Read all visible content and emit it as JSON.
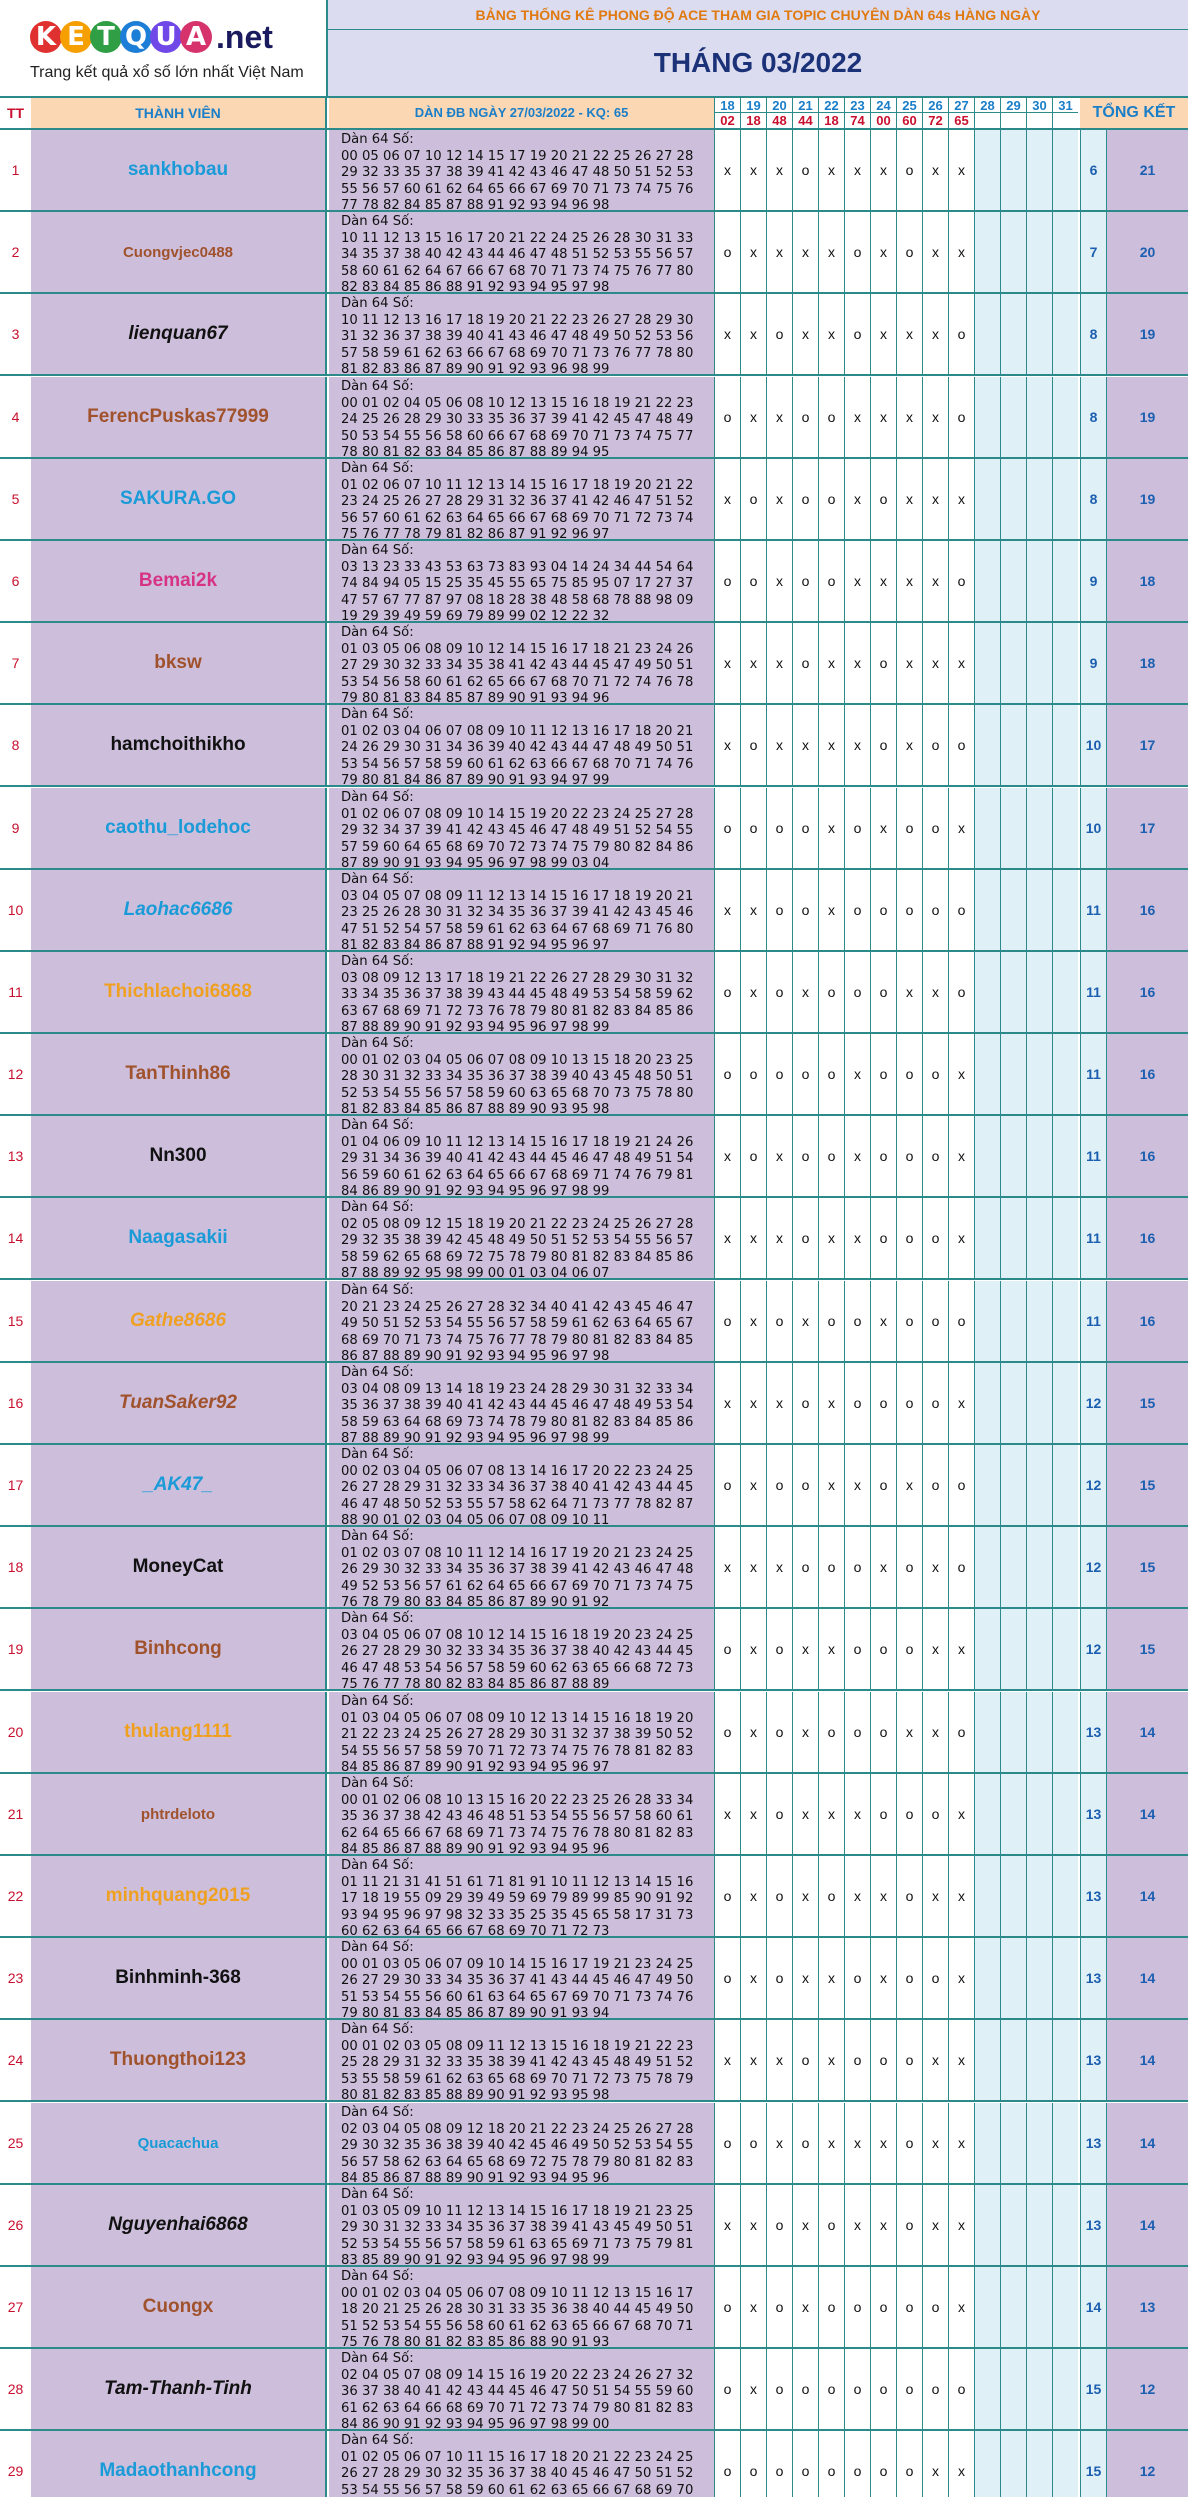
{
  "logo": {
    "letters": [
      "K",
      "E",
      "T",
      "Q",
      "U",
      "A"
    ],
    "suffix": ".net",
    "tagline": "Trang kết quả xổ số lớn nhất Việt Nam",
    "ball_colors": [
      "#e03131",
      "#f59f00",
      "#2f9e44",
      "#1c7ed6",
      "#7048e8",
      "#d6336c"
    ]
  },
  "banner": "BẢNG THỐNG KÊ PHONG ĐỘ ACE THAM GIA TOPIC CHUYÊN DÀN 64s HÀNG NGÀY",
  "month": "THÁNG 03/2022",
  "columns": {
    "tt": "TT",
    "member": "THÀNH VIÊN",
    "dan": "DÀN ĐB NGÀY 27/03/2022 - KQ: 65",
    "total": "TỔNG KẾT"
  },
  "days": [
    {
      "day": "18",
      "kq": "02"
    },
    {
      "day": "19",
      "kq": "18"
    },
    {
      "day": "20",
      "kq": "48"
    },
    {
      "day": "21",
      "kq": "44"
    },
    {
      "day": "22",
      "kq": "18"
    },
    {
      "day": "23",
      "kq": "74"
    },
    {
      "day": "24",
      "kq": "00"
    },
    {
      "day": "25",
      "kq": "60"
    },
    {
      "day": "26",
      "kq": "72"
    },
    {
      "day": "27",
      "kq": "65"
    },
    {
      "day": "28",
      "kq": ""
    },
    {
      "day": "29",
      "kq": ""
    },
    {
      "day": "30",
      "kq": ""
    },
    {
      "day": "31",
      "kq": ""
    }
  ],
  "rows": [
    {
      "tt": "1",
      "name": "sankhobau",
      "color": "#1a9bd7",
      "italic": false,
      "label": "Dàn 64 Số:",
      "nums": "00 05 06 07 10 12 14 15 17 19 20 21 22 25 26 27 28 29 32 33 35 37 38 39 41 42 43 46 47 48 50 51 52 53 55 56 57 60 61 62 64 65 66 67 69 70 71 73 74 75 76 77 78 82 84 85 87 88 91 92 93 94 96 98",
      "marks": [
        "x",
        "x",
        "x",
        "o",
        "x",
        "x",
        "x",
        "o",
        "x",
        "x"
      ],
      "count": "6",
      "score": "21"
    },
    {
      "tt": "2",
      "name": "Cuongvjec0488",
      "color": "#a0522d",
      "italic": false,
      "small": true,
      "label": "Dàn 64 Số:",
      "nums": "10 11 12 13 15 16 17 20 21 22 24 25 26 28 30 31 33 34 35 37 38 40 42 43 44 46 47 48 51 52 53 55 56 57 58 60 61 62 64 67 66 67 68 70 71 73 74 75 76 77 80 82 83 84 85 86 88 91 92 93 94 95 97 98",
      "marks": [
        "o",
        "x",
        "x",
        "x",
        "x",
        "o",
        "x",
        "o",
        "x",
        "x"
      ],
      "count": "7",
      "score": "20"
    },
    {
      "tt": "3",
      "name": "lienquan67",
      "color": "#111111",
      "italic": true,
      "label": "Dàn 64 Số:",
      "nums": "10 11 12 13 16 17 18 19 20 21 22 23 26 27 28 29 30 31 32 36 37 38 39 40 41 43 46 47 48 49 50 52 53 56 57 58 59 61 62 63 66 67 68 69 70 71 73 76 77 78 80 81 82 83 86 87 89 90 91 92 93 96 98 99",
      "marks": [
        "x",
        "x",
        "o",
        "x",
        "x",
        "o",
        "x",
        "x",
        "x",
        "o"
      ],
      "count": "8",
      "score": "19"
    },
    {
      "tt": "4",
      "name": "FerencPuskas77999",
      "color": "#a0522d",
      "italic": false,
      "label": "Dàn 64 Số:",
      "nums": "00 01 02 04 05 06 08 10 12 13 15 16 18 19 21 22 23 24 25 26 28 29 30 33 35 36 37 39 41 42 45 47 48 49 50 53 54 55 56 58 60 66 67 68 69 70 71 73 74 75 77 78 80 81 82 83 84 85 86 87 88 89 94 95",
      "marks": [
        "o",
        "x",
        "x",
        "o",
        "o",
        "x",
        "x",
        "x",
        "x",
        "o"
      ],
      "count": "8",
      "score": "19"
    },
    {
      "tt": "5",
      "name": "SAKURA.GO",
      "color": "#1a9bd7",
      "italic": false,
      "label": "Dàn 64 Số:",
      "nums": "01 02 06 07 10 11 12 13 14 15 16 17 18 19 20 21 22 23 24 25 26 27 28 29 31 32 36 37 41 42 46 47 51 52 56 57 60 61 62 63 64 65 66 67 68 69 70 71 72 73 74 75 76 77 78 79 81 82 86 87 91 92 96 97",
      "marks": [
        "x",
        "o",
        "x",
        "o",
        "o",
        "x",
        "o",
        "x",
        "x",
        "x"
      ],
      "count": "8",
      "score": "19"
    },
    {
      "tt": "6",
      "name": "Bemai2k",
      "color": "#d63384",
      "italic": false,
      "label": "Dàn 64 Số:",
      "nums": "03 13 23 33 43 53 63 73 83 93 04 14 24 34 44 54 64 74 84 94 05 15 25 35 45 55 65 75 85 95 07 17 27 37 47 57 67 77 87 97 08 18 28 38 48 58 68 78 88 98 09 19 29 39 49 59 69 79 89 99 02 12 22 32",
      "marks": [
        "o",
        "o",
        "x",
        "o",
        "o",
        "x",
        "x",
        "x",
        "x",
        "o"
      ],
      "count": "9",
      "score": "18"
    },
    {
      "tt": "7",
      "name": "bksw",
      "color": "#a0522d",
      "italic": false,
      "label": "Dàn 64 Số:",
      "nums": "01 03 05 06 08 09 10 12 14 15 16 17 18 21 23 24 26 27 29 30 32 33 34 35 38 41 42 43 44 45 47 49 50 51 53 54 56 58 60 61 62 65 66 67 68 70 71 72 74 76 78 79 80 81 83 84 85 87 89 90 91 93 94 96",
      "marks": [
        "x",
        "x",
        "x",
        "o",
        "x",
        "x",
        "o",
        "x",
        "x",
        "x"
      ],
      "count": "9",
      "score": "18"
    },
    {
      "tt": "8",
      "name": "hamchoithikho",
      "color": "#111111",
      "italic": false,
      "label": "Dàn 64 Số:",
      "nums": "01 02 03 04 06 07 08 09 10 11 12 13 16 17 18 20 21 24 26 29 30 31 34 36 39 40 42 43 44 47 48 49 50 51 53 54 56 57 58 59 60 61 62 63 66 67 68 70 71 74 76 79 80 81 84 86 87 89 90 91 93 94 97 99",
      "marks": [
        "x",
        "o",
        "x",
        "x",
        "x",
        "x",
        "o",
        "x",
        "o",
        "o"
      ],
      "count": "10",
      "score": "17"
    },
    {
      "tt": "9",
      "name": "caothu_lodehoc",
      "color": "#1a9bd7",
      "italic": false,
      "label": "Dàn 64 Số:",
      "nums": "01 02 06 07 08 09 10 14 15 19 20 22 23 24 25 27 28 29 32 34 37 39 41 42 43 45 46 47 48 49 51 52 54 55 57 59 60 64 65 68 69 70 72 73 74 75 79 80 82 84 86 87 89 90 91 93 94 95 96 97 98 99 03 04",
      "marks": [
        "o",
        "o",
        "o",
        "o",
        "x",
        "o",
        "x",
        "o",
        "o",
        "x"
      ],
      "count": "10",
      "score": "17"
    },
    {
      "tt": "10",
      "name": "Laohac6686",
      "color": "#1a9bd7",
      "italic": true,
      "label": "Dàn 64 Số:",
      "nums": "03 04 05 07 08 09 11 12 13 14 15 16 17 18 19 20 21 23 25 26 28 30 31 32 34 35 36 37 39 41 42 43 45 46 47 51 52 54 57 58 59 61 62 63 64 67 68 69 71 76 80 81 82 83 84 86 87 88 91 92 94 95 96 97",
      "marks": [
        "x",
        "x",
        "o",
        "o",
        "x",
        "o",
        "o",
        "o",
        "o",
        "o"
      ],
      "count": "11",
      "score": "16"
    },
    {
      "tt": "11",
      "name": "Thichlachoi6868",
      "color": "#f0a020",
      "italic": false,
      "label": "Dàn 64 Số:",
      "nums": "03 08 09 12 13 17 18 19 21 22 26 27 28 29 30 31 32 33 34 35 36 37 38 39 43 44 45 48 49 53 54 58 59 62 63 67 68 69 71 72 73 76 78 79 80 81 82 83 84 85 86 87 88 89 90 91 92 93 94 95 96 97 98 99",
      "marks": [
        "o",
        "x",
        "o",
        "x",
        "o",
        "o",
        "o",
        "x",
        "x",
        "o"
      ],
      "count": "11",
      "score": "16"
    },
    {
      "tt": "12",
      "name": "TanThinh86",
      "color": "#a0522d",
      "italic": false,
      "label": "Dàn 64 Số:",
      "nums": "00 01 02 03 04 05 06 07 08 09 10 13 15 18 20 23 25 28 30 31 32 33 34 35 36 37 38 39 40 43 45 48 50 51 52 53 54 55 56 57 58 59 60 63 65 68 70 73 75 78 80 81 82 83 84 85 86 87 88 89 90 93 95 98",
      "marks": [
        "o",
        "o",
        "o",
        "o",
        "o",
        "x",
        "o",
        "o",
        "o",
        "x"
      ],
      "count": "11",
      "score": "16"
    },
    {
      "tt": "13",
      "name": "Nn300",
      "color": "#111111",
      "italic": false,
      "label": "Dàn 64 Số:",
      "nums": "01 04 06 09 10 11 12 13 14 15 16 17 18 19 21 24 26 29 31 34 36 39 40 41 42 43 44 45 46 47 48 49 51 54 56 59 60 61 62 63 64 65 66 67 68 69 71 74 76 79 81 84 86 89 90 91 92 93 94 95 96 97 98 99",
      "marks": [
        "x",
        "o",
        "x",
        "o",
        "o",
        "x",
        "o",
        "o",
        "o",
        "x"
      ],
      "count": "11",
      "score": "16"
    },
    {
      "tt": "14",
      "name": "Naagasakii",
      "color": "#1a9bd7",
      "italic": false,
      "label": "Dàn 64 Số:",
      "nums": "02 05 08 09 12 15 18 19 20 21 22 23 24 25 26 27 28 29 32 35 38 39 42 45 48 49 50 51 52 53 54 55 56 57 58 59 62 65 68 69 72 75 78 79 80 81 82 83 84 85 86 87 88 89 92 95 98 99 00 01 03 04 06 07",
      "marks": [
        "x",
        "x",
        "x",
        "o",
        "x",
        "x",
        "o",
        "o",
        "o",
        "x"
      ],
      "count": "11",
      "score": "16"
    },
    {
      "tt": "15",
      "name": "Gathe8686",
      "color": "#f0a020",
      "italic": true,
      "label": "Dàn 64 Số:",
      "nums": "20 21 23 24 25 26 27 28 32 34 40 41 42 43 45 46 47 49 50 51 52 53 54 55 56 57 58 59 61 62 63 64 65 67 68 69 70 71 73 74 75 76 77 78 79 80 81 82 83 84 85 86 87 88 89 90 91 92 93 94 95 96 97 98",
      "marks": [
        "o",
        "x",
        "o",
        "x",
        "o",
        "o",
        "x",
        "o",
        "o",
        "o"
      ],
      "count": "11",
      "score": "16"
    },
    {
      "tt": "16",
      "name": "TuanSaker92",
      "color": "#a0522d",
      "italic": true,
      "label": "Dàn 64 Số:",
      "nums": "03 04 08 09 13 14 18 19 23 24 28 29 30 31 32 33 34 35 36 37 38 39 40 41 42 43 44 45 46 47 48 49 53 54 58 59 63 64 68 69 73 74 78 79 80 81 82 83 84 85 86 87 88 89 90 91 92 93 94 95 96 97 98 99",
      "marks": [
        "x",
        "x",
        "x",
        "o",
        "x",
        "o",
        "o",
        "o",
        "o",
        "x"
      ],
      "count": "12",
      "score": "15"
    },
    {
      "tt": "17",
      "name": "_AK47_",
      "color": "#1a9bd7",
      "italic": true,
      "label": "Dàn 64 Số:",
      "nums": "00 02 03 04 05 06 07 08 13 14 16 17 20 22 23 24 25 26 27 28 29 31 32 33 34 36 37 38 40 41 42 43 44 45 46 47 48 50 52 53 55 57 58 62 64 71 73 77 78 82 87 88 90 01 02 03 04 05 06 07 08 09 10 11",
      "marks": [
        "o",
        "x",
        "o",
        "o",
        "x",
        "x",
        "o",
        "x",
        "o",
        "o"
      ],
      "count": "12",
      "score": "15"
    },
    {
      "tt": "18",
      "name": "MoneyCat",
      "color": "#111111",
      "italic": false,
      "label": "Dàn 64 Số:",
      "nums": "01 02 03 07 08 10 11 12 14 16 17 19 20 21 23 24 25 26 29 30 32 33 34 35 36 37 38 39 41 42 43 46 47 48 49 52 53 56 57 61 62 64 65 66 67 69 70 71 73 74 75 76 78 79 80 83 84 85 86 87 89 90 91 92",
      "marks": [
        "x",
        "x",
        "x",
        "o",
        "o",
        "o",
        "x",
        "o",
        "x",
        "o"
      ],
      "count": "12",
      "score": "15"
    },
    {
      "tt": "19",
      "name": "Binhcong",
      "color": "#a0522d",
      "italic": false,
      "label": "Dàn 64 Số:",
      "nums": "03 04 05 06 07 08 10 12 14 15 16 18 19 20 23 24 25 26 27 28 29 30 32 33 34 35 36 37 38 40 42 43 44 45 46 47 48 53 54 56 57 58 59 60 62 63 65 66 68 72 73 75 76 77 78 80 82 83 84 85 86 87 88 89",
      "marks": [
        "o",
        "x",
        "o",
        "x",
        "x",
        "o",
        "o",
        "o",
        "x",
        "x"
      ],
      "count": "12",
      "score": "15"
    },
    {
      "tt": "20",
      "name": "thulang1111",
      "color": "#f0a020",
      "italic": false,
      "label": "Dàn 64 Số:",
      "nums": "01 03 04 05 06 07 08 09 10 12 13 14 15 16 18 19 20 21 22 23 24 25 26 27 28 29 30 31 32 37 38 39 50 52 54 55 56 57 58 59 70 71 72 73 74 75 76 78 81 82 83 84 85 86 87 89 90 91 92 93 94 95 96 97",
      "marks": [
        "o",
        "x",
        "o",
        "x",
        "o",
        "o",
        "o",
        "x",
        "x",
        "o"
      ],
      "count": "13",
      "score": "14"
    },
    {
      "tt": "21",
      "name": "phtrdeloto",
      "color": "#a0522d",
      "italic": false,
      "small": true,
      "label": "Dàn 64 Số:",
      "nums": "00 01 02 06 08 10 13 15 16 20 22 23 25 26 28 33 34 35 36 37 38 42 43 46 48 51 53 54 55 56 57 58 60 61 62 64 65 66 67 68 69 71 73 74 75 76 78 80 81 82 83 84 85 86 87 88 89 90 91 92 93 94 95 96",
      "marks": [
        "x",
        "x",
        "o",
        "x",
        "x",
        "x",
        "o",
        "o",
        "o",
        "x"
      ],
      "count": "13",
      "score": "14"
    },
    {
      "tt": "22",
      "name": "minhquang2015",
      "color": "#f0a020",
      "italic": false,
      "label": "Dàn 64 Số:",
      "nums": "01 11 21 31 41 51 61 71 81 91 10 11 12 13 14 15 16 17 18 19 55 09 29 39 49 59 69 79 89 99 85 90 91 92 93 94 95 96 97 98 32 33 35 25 35 45 65 58 17 31 73 60 62 63 64 65 66 67 68 69 70 71 72 73",
      "marks": [
        "o",
        "x",
        "o",
        "x",
        "o",
        "x",
        "x",
        "o",
        "x",
        "x"
      ],
      "count": "13",
      "score": "14"
    },
    {
      "tt": "23",
      "name": "Binhminh-368",
      "color": "#111111",
      "italic": false,
      "label": "Dàn 64 Số:",
      "nums": "00 01 03 05 06 07 09 10 14 15 16 17 19 21 23 24 25 26 27 29 30 33 34 35 36 37 41 43 44 45 46 47 49 50 51 53 54 55 56 60 61 63 64 65 67 69 70 71 73 74 76 79 80 81 83 84 85 86 87 89 90 91 93 94",
      "marks": [
        "o",
        "x",
        "o",
        "x",
        "x",
        "o",
        "x",
        "o",
        "o",
        "x"
      ],
      "count": "13",
      "score": "14"
    },
    {
      "tt": "24",
      "name": "Thuongthoi123",
      "color": "#a0522d",
      "italic": false,
      "label": "Dàn 64 Số:",
      "nums": "00 01 02 03 05 08 09 11 12 13 15 16 18 19 21 22 23 25 28 29 31 32 33 35 38 39 41 42 43 45 48 49 51 52 53 55 58 59 61 62 63 65 68 69 70 71 72 73 75 78 79 80 81 82 83 85 88 89 90 91 92 93 95 98",
      "marks": [
        "x",
        "x",
        "x",
        "o",
        "x",
        "o",
        "o",
        "o",
        "x",
        "x"
      ],
      "count": "13",
      "score": "14"
    },
    {
      "tt": "25",
      "name": "Quacachua",
      "color": "#1a9bd7",
      "italic": false,
      "small": true,
      "label": "Dàn 64 Số:",
      "nums": "02 03 04 05 08 09 12 18 20 21 22 23 24 25 26 27 28 29 30 32 35 36 38 39 40 42 45 46 49 50 52 53 54 55 56 57 58 62 63 64 65 68 69 72 75 78 79 80 81 82 83 84 85 86 87 88 89 90 91 92 93 94 95 96",
      "marks": [
        "o",
        "o",
        "x",
        "o",
        "x",
        "x",
        "x",
        "o",
        "x",
        "x"
      ],
      "count": "13",
      "score": "14"
    },
    {
      "tt": "26",
      "name": "Nguyenhai6868",
      "color": "#111111",
      "italic": true,
      "label": "Dàn 64 Số:",
      "nums": "01 03 05 09 10 11 12 13 14 15 16 17 18 19 21 23 25 29 30 31 32 33 34 35 36 37 38 39 41 43 45 49 50 51 52 53 54 55 56 57 58 59 61 63 65 69 71 73 75 79 81 83 85 89 90 91 92 93 94 95 96 97 98 99",
      "marks": [
        "x",
        "x",
        "o",
        "x",
        "o",
        "x",
        "x",
        "o",
        "x",
        "x"
      ],
      "count": "13",
      "score": "14"
    },
    {
      "tt": "27",
      "name": "Cuongx",
      "color": "#a0522d",
      "italic": false,
      "label": "Dàn 64 Số:",
      "nums": "00 01 02 03 04 05 06 07 08 09 10 11 12 13 15 16 17 18 20 21 25 26 28 30 31 33 35 36 38 40 44 45 49 50 51 52 53 54 55 56 58 60 61 62 63 65 66 67 68 70 71 75 76 78 80 81 82 83 85 86 88 90 91 93",
      "marks": [
        "o",
        "x",
        "o",
        "x",
        "o",
        "o",
        "o",
        "o",
        "o",
        "x"
      ],
      "count": "14",
      "score": "13"
    },
    {
      "tt": "28",
      "name": "Tam-Thanh-Tinh",
      "color": "#111111",
      "italic": true,
      "label": "Dàn 64 Số:",
      "nums": "02 04 05 07 08 09 14 15 16 19 20 22 23 24 26 27 32 36 37 38 40 41 42 43 44 45 46 47 50 51 54 55 59 60 61 62 63 64 66 68 69 70 71 72 73 74 79 80 81 82 83 84 86 90 91 92 93 94 95 96 97 98 99 00",
      "marks": [
        "o",
        "x",
        "o",
        "o",
        "o",
        "o",
        "o",
        "o",
        "o",
        "o"
      ],
      "count": "15",
      "score": "12"
    },
    {
      "tt": "29",
      "name": "Madaothanhcong",
      "color": "#1a9bd7",
      "italic": false,
      "label": "Dàn 64 Số:",
      "nums": "01 02 05 06 07 10 11 15 16 17 18 20 21 22 23 24 25 26 27 28 29 30 32 35 36 37 38 40 45 46 47 50 51 52 53 54 55 56 57 58 59 60 61 62 63 65 66 67 68 69 70 71 72 73 74 75 76 77 78 80 81 82 83 85",
      "marks": [
        "o",
        "o",
        "o",
        "o",
        "o",
        "o",
        "o",
        "o",
        "x",
        "x"
      ],
      "count": "15",
      "score": "12"
    }
  ]
}
